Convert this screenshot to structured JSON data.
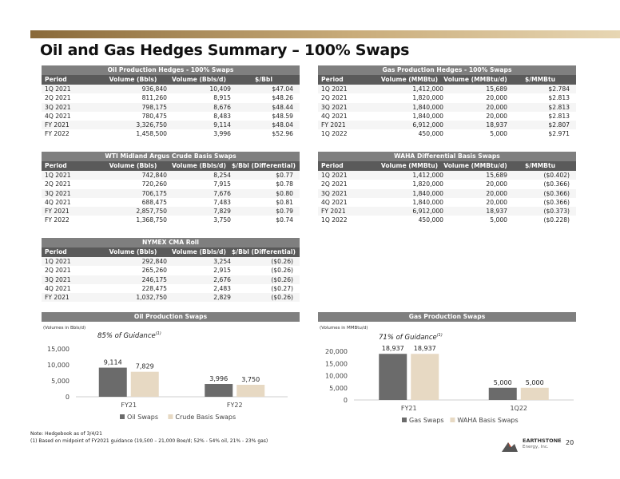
{
  "title": "Oil and Gas Hedges Summary – 100% Swaps",
  "tables": {
    "oil_hedges": {
      "caption": "Oil Production Hedges - 100% Swaps",
      "headers": [
        "Period",
        "Volume (Bbls)",
        "Volume (Bbls/d)",
        "$/Bbl"
      ],
      "rows": [
        [
          "1Q 2021",
          "936,840",
          "10,409",
          "$47.04"
        ],
        [
          "2Q 2021",
          "811,260",
          "8,915",
          "$48.26"
        ],
        [
          "3Q 2021",
          "798,175",
          "8,676",
          "$48.44"
        ],
        [
          "4Q 2021",
          "780,475",
          "8,483",
          "$48.59"
        ],
        [
          "FY 2021",
          "3,326,750",
          "9,114",
          "$48.04"
        ],
        [
          "FY 2022",
          "1,458,500",
          "3,996",
          "$52.96"
        ]
      ]
    },
    "gas_hedges": {
      "caption": "Gas Production Hedges - 100% Swaps",
      "headers": [
        "Period",
        "Volume (MMBtu)",
        "Volume (MMBtu/d)",
        "$/MMBtu"
      ],
      "rows": [
        [
          "1Q 2021",
          "1,412,000",
          "15,689",
          "$2.784"
        ],
        [
          "2Q 2021",
          "1,820,000",
          "20,000",
          "$2.813"
        ],
        [
          "3Q 2021",
          "1,840,000",
          "20,000",
          "$2.813"
        ],
        [
          "4Q 2021",
          "1,840,000",
          "20,000",
          "$2.813"
        ],
        [
          "FY 2021",
          "6,912,000",
          "18,937",
          "$2.807"
        ],
        [
          "1Q 2022",
          "450,000",
          "5,000",
          "$2.971"
        ]
      ]
    },
    "wti_basis": {
      "caption": "WTI Midland Argus Crude Basis Swaps",
      "headers": [
        "Period",
        "Volume (Bbls)",
        "Volume (Bbls/d)",
        "$/Bbl (Differential)"
      ],
      "rows": [
        [
          "1Q 2021",
          "742,840",
          "8,254",
          "$0.77"
        ],
        [
          "2Q 2021",
          "720,260",
          "7,915",
          "$0.78"
        ],
        [
          "3Q 2021",
          "706,175",
          "7,676",
          "$0.80"
        ],
        [
          "4Q 2021",
          "688,475",
          "7,483",
          "$0.81"
        ],
        [
          "FY 2021",
          "2,857,750",
          "7,829",
          "$0.79"
        ],
        [
          "FY 2022",
          "1,368,750",
          "3,750",
          "$0.74"
        ]
      ]
    },
    "waha_basis": {
      "caption": "WAHA Differential Basis Swaps",
      "headers": [
        "Period",
        "Volume (MMBtu)",
        "Volume (MMBtu/d)",
        "$/MMBtu"
      ],
      "rows": [
        [
          "1Q 2021",
          "1,412,000",
          "15,689",
          "($0.402)"
        ],
        [
          "2Q 2021",
          "1,820,000",
          "20,000",
          "($0.366)"
        ],
        [
          "3Q 2021",
          "1,840,000",
          "20,000",
          "($0.366)"
        ],
        [
          "4Q 2021",
          "1,840,000",
          "20,000",
          "($0.366)"
        ],
        [
          "FY 2021",
          "6,912,000",
          "18,937",
          "($0.373)"
        ],
        [
          "1Q 2022",
          "450,000",
          "5,000",
          "($0.228)"
        ]
      ]
    },
    "nymex_roll": {
      "caption": "NYMEX CMA Roll",
      "headers": [
        "Period",
        "Volume (Bbls)",
        "Volume (Bbls/d)",
        "$/Bbl (Differential)"
      ],
      "rows": [
        [
          "1Q 2021",
          "292,840",
          "3,254",
          "($0.26)"
        ],
        [
          "2Q 2021",
          "265,260",
          "2,915",
          "($0.26)"
        ],
        [
          "3Q 2021",
          "246,175",
          "2,676",
          "($0.26)"
        ],
        [
          "4Q 2021",
          "228,475",
          "2,483",
          "($0.27)"
        ],
        [
          "FY 2021",
          "1,032,750",
          "2,829",
          "($0.26)"
        ]
      ]
    }
  },
  "charts": {
    "oil": {
      "caption": "Oil Production Swaps",
      "volumes_note": "(Volumes in Bbls/d)",
      "guidance": "85% of Guidance",
      "guidance_sup": "(1)"
    },
    "gas": {
      "caption": "Gas Production Swaps",
      "volumes_note": "(Volumes in MMBtu/d)",
      "guidance": "71% of Guidance",
      "guidance_sup": "(1)"
    }
  },
  "chart_data": [
    {
      "type": "bar",
      "title": "Oil Production Swaps",
      "categories": [
        "FY21",
        "FY22"
      ],
      "series": [
        {
          "name": "Oil Swaps",
          "values": [
            9114,
            3996
          ],
          "labels": [
            "9,114",
            "3,996"
          ],
          "color": "#6b6b6b"
        },
        {
          "name": "Crude Basis Swaps",
          "values": [
            7829,
            3750
          ],
          "labels": [
            "7,829",
            "3,750"
          ],
          "color": "#e7d9c3"
        }
      ],
      "ylim": [
        0,
        15000
      ],
      "yticks": [
        "0",
        "5,000",
        "10,000",
        "15,000"
      ],
      "ytick_values": [
        0,
        5000,
        10000,
        15000
      ],
      "legend": "bottom"
    },
    {
      "type": "bar",
      "title": "Gas Production Swaps",
      "categories": [
        "FY21",
        "1Q22"
      ],
      "series": [
        {
          "name": "Gas Swaps",
          "values": [
            18937,
            5000
          ],
          "labels": [
            "18,937",
            "5,000"
          ],
          "color": "#6b6b6b"
        },
        {
          "name": "WAHA Basis Swaps",
          "values": [
            18937,
            5000
          ],
          "labels": [
            "18,937",
            "5,000"
          ],
          "color": "#e7d9c3"
        }
      ],
      "ylim": [
        0,
        20000
      ],
      "yticks": [
        "0",
        "5,000",
        "10,000",
        "15,000",
        "20,000"
      ],
      "ytick_values": [
        0,
        5000,
        10000,
        15000,
        20000
      ],
      "legend": "bottom"
    }
  ],
  "footnotes": {
    "note": "Note: Hedgebook as of 3/4/21",
    "note1": "(1)  Based on midpoint of FY2021 guidance (19,500 – 21,000 Boe/d; 52% - 54% oil, 21% - 23% gas)"
  },
  "logo": {
    "name": "EARTHSTONE",
    "sub": "Energy, Inc.",
    "colors": {
      "primary": "#555555",
      "accent": "#c8442a"
    }
  },
  "page_number": "20"
}
